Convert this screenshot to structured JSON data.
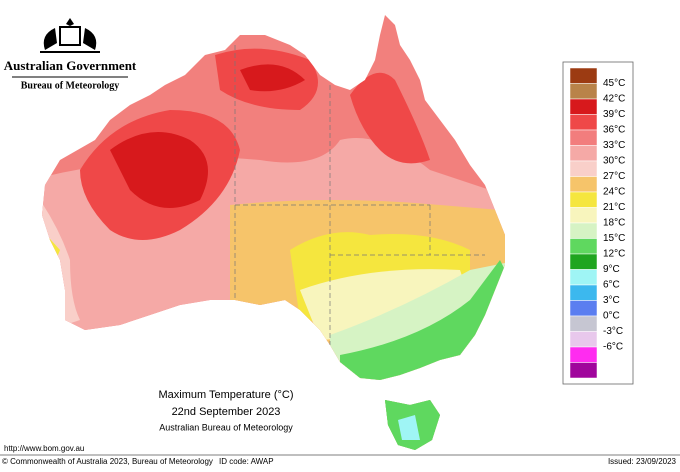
{
  "header": {
    "title": "Australian Government",
    "subtitle": "Bureau of Meteorology"
  },
  "map": {
    "title": "Maximum Temperature (°C)",
    "date": "22nd September 2023",
    "source": "Australian Bureau of Meteorology"
  },
  "legend": {
    "colors": [
      "#9c3b12",
      "#b98349",
      "#d7191c",
      "#ef4848",
      "#f27d7d",
      "#f5a9a6",
      "#f9cfc9",
      "#f6c46a",
      "#f5e63e",
      "#f8f5bd",
      "#d6f3c4",
      "#5fd85f",
      "#1fa51f",
      "#9ff5f5",
      "#3cb8ee",
      "#5b7ef0",
      "#c6c6d2",
      "#e8c8ec",
      "#ff2cf0",
      "#a0069c"
    ],
    "labels": [
      "45°C",
      "42°C",
      "39°C",
      "36°C",
      "33°C",
      "30°C",
      "27°C",
      "24°C",
      "21°C",
      "18°C",
      "15°C",
      "12°C",
      "9°C",
      "6°C",
      "3°C",
      "0°C",
      "-3°C",
      "-6°C"
    ]
  },
  "footer": {
    "url": "http://www.bom.gov.au",
    "copyright": "© Commonwealth of Australia 2023, Bureau of Meteorology",
    "id_code": "ID code: AWAP",
    "issued": "Issued: 23/09/2023"
  }
}
